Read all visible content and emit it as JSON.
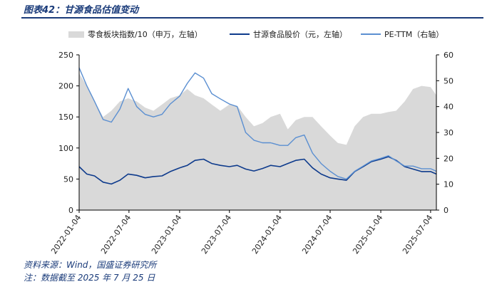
{
  "figure": {
    "title": "图表42：甘源食品估值变动",
    "source": "资料来源：Wind，国盛证券研究所",
    "note": "注：数据截至 2025 年 7 月 25 日"
  },
  "chart_data": {
    "type": "line",
    "legend_position": "top",
    "grid": false,
    "x_ticks": [
      "2022-01-04",
      "2022-07-04",
      "2023-01-04",
      "2023-07-04",
      "2024-01-04",
      "2024-07-04",
      "2025-01-04",
      "2025-07-04"
    ],
    "x_range": [
      "2022-01-04",
      "2025-07-25"
    ],
    "left_axis": {
      "ticks": [
        0,
        50,
        100,
        150,
        200,
        250
      ],
      "range": [
        0,
        250
      ]
    },
    "right_axis": {
      "ticks": [
        0,
        10,
        20,
        30,
        40,
        50,
        60
      ],
      "range": [
        0,
        60
      ]
    },
    "series": [
      {
        "name": "零食板块指数/10（申万，左轴）",
        "type": "area",
        "axis": "left",
        "color": "#d9d9d9",
        "points": [
          [
            "2022-01-04",
            220
          ],
          [
            "2022-02-01",
            200
          ],
          [
            "2022-03-01",
            175
          ],
          [
            "2022-04-01",
            150
          ],
          [
            "2022-05-01",
            160
          ],
          [
            "2022-06-01",
            175
          ],
          [
            "2022-07-01",
            180
          ],
          [
            "2022-08-01",
            175
          ],
          [
            "2022-09-01",
            165
          ],
          [
            "2022-10-01",
            160
          ],
          [
            "2022-11-01",
            170
          ],
          [
            "2022-12-01",
            180
          ],
          [
            "2023-01-04",
            185
          ],
          [
            "2023-02-01",
            195
          ],
          [
            "2023-03-01",
            185
          ],
          [
            "2023-04-01",
            180
          ],
          [
            "2023-05-01",
            170
          ],
          [
            "2023-06-01",
            160
          ],
          [
            "2023-07-04",
            170
          ],
          [
            "2023-08-01",
            168
          ],
          [
            "2023-09-01",
            150
          ],
          [
            "2023-10-01",
            135
          ],
          [
            "2023-11-01",
            140
          ],
          [
            "2023-12-01",
            150
          ],
          [
            "2024-01-04",
            155
          ],
          [
            "2024-02-01",
            130
          ],
          [
            "2024-03-01",
            145
          ],
          [
            "2024-04-01",
            150
          ],
          [
            "2024-05-01",
            150
          ],
          [
            "2024-06-01",
            135
          ],
          [
            "2024-07-04",
            120
          ],
          [
            "2024-08-01",
            108
          ],
          [
            "2024-09-01",
            105
          ],
          [
            "2024-10-01",
            135
          ],
          [
            "2024-11-01",
            150
          ],
          [
            "2024-12-01",
            155
          ],
          [
            "2025-01-04",
            155
          ],
          [
            "2025-02-01",
            158
          ],
          [
            "2025-03-01",
            160
          ],
          [
            "2025-04-01",
            175
          ],
          [
            "2025-05-01",
            195
          ],
          [
            "2025-06-01",
            200
          ],
          [
            "2025-07-04",
            198
          ],
          [
            "2025-07-25",
            185
          ]
        ]
      },
      {
        "name": "甘源食品股价（元，左轴）",
        "type": "line",
        "axis": "left",
        "color": "#0d3a8c",
        "points": [
          [
            "2022-01-04",
            70
          ],
          [
            "2022-02-01",
            58
          ],
          [
            "2022-03-01",
            55
          ],
          [
            "2022-04-01",
            45
          ],
          [
            "2022-05-01",
            42
          ],
          [
            "2022-06-01",
            48
          ],
          [
            "2022-07-01",
            58
          ],
          [
            "2022-08-01",
            56
          ],
          [
            "2022-09-01",
            52
          ],
          [
            "2022-10-01",
            54
          ],
          [
            "2022-11-01",
            55
          ],
          [
            "2022-12-01",
            62
          ],
          [
            "2023-01-04",
            68
          ],
          [
            "2023-02-01",
            72
          ],
          [
            "2023-03-01",
            80
          ],
          [
            "2023-04-01",
            82
          ],
          [
            "2023-05-01",
            75
          ],
          [
            "2023-06-01",
            72
          ],
          [
            "2023-07-04",
            70
          ],
          [
            "2023-08-01",
            72
          ],
          [
            "2023-09-01",
            66
          ],
          [
            "2023-10-01",
            63
          ],
          [
            "2023-11-01",
            67
          ],
          [
            "2023-12-01",
            72
          ],
          [
            "2024-01-04",
            70
          ],
          [
            "2024-02-01",
            75
          ],
          [
            "2024-03-01",
            80
          ],
          [
            "2024-04-01",
            82
          ],
          [
            "2024-05-01",
            68
          ],
          [
            "2024-06-01",
            58
          ],
          [
            "2024-07-04",
            52
          ],
          [
            "2024-08-01",
            50
          ],
          [
            "2024-09-01",
            48
          ],
          [
            "2024-10-01",
            62
          ],
          [
            "2024-11-01",
            70
          ],
          [
            "2024-12-01",
            78
          ],
          [
            "2025-01-04",
            82
          ],
          [
            "2025-02-01",
            86
          ],
          [
            "2025-03-01",
            80
          ],
          [
            "2025-04-01",
            70
          ],
          [
            "2025-05-01",
            66
          ],
          [
            "2025-06-01",
            62
          ],
          [
            "2025-07-04",
            62
          ],
          [
            "2025-07-25",
            58
          ]
        ]
      },
      {
        "name": "PE-TTM（右轴）",
        "type": "line",
        "axis": "right",
        "color": "#5b8fd1",
        "points": [
          [
            "2022-01-04",
            55
          ],
          [
            "2022-02-01",
            48
          ],
          [
            "2022-03-01",
            42
          ],
          [
            "2022-04-01",
            35
          ],
          [
            "2022-05-01",
            34
          ],
          [
            "2022-06-01",
            39
          ],
          [
            "2022-07-01",
            47
          ],
          [
            "2022-08-01",
            40
          ],
          [
            "2022-09-01",
            37
          ],
          [
            "2022-10-01",
            36
          ],
          [
            "2022-11-01",
            37
          ],
          [
            "2022-12-01",
            41
          ],
          [
            "2023-01-04",
            44
          ],
          [
            "2023-02-01",
            49
          ],
          [
            "2023-03-01",
            53
          ],
          [
            "2023-04-01",
            51
          ],
          [
            "2023-05-01",
            45
          ],
          [
            "2023-06-01",
            43
          ],
          [
            "2023-07-04",
            41
          ],
          [
            "2023-08-01",
            40
          ],
          [
            "2023-09-01",
            30
          ],
          [
            "2023-10-01",
            27
          ],
          [
            "2023-11-01",
            26
          ],
          [
            "2023-12-01",
            26
          ],
          [
            "2024-01-04",
            25
          ],
          [
            "2024-02-01",
            25
          ],
          [
            "2024-03-01",
            28
          ],
          [
            "2024-04-01",
            29
          ],
          [
            "2024-05-01",
            22
          ],
          [
            "2024-06-01",
            18
          ],
          [
            "2024-07-04",
            15
          ],
          [
            "2024-08-01",
            13
          ],
          [
            "2024-09-01",
            12
          ],
          [
            "2024-10-01",
            15
          ],
          [
            "2024-11-01",
            17
          ],
          [
            "2024-12-01",
            19
          ],
          [
            "2025-01-04",
            20
          ],
          [
            "2025-02-01",
            21
          ],
          [
            "2025-03-01",
            19
          ],
          [
            "2025-04-01",
            17
          ],
          [
            "2025-05-01",
            17
          ],
          [
            "2025-06-01",
            16
          ],
          [
            "2025-07-04",
            16
          ],
          [
            "2025-07-25",
            15
          ]
        ]
      }
    ]
  }
}
